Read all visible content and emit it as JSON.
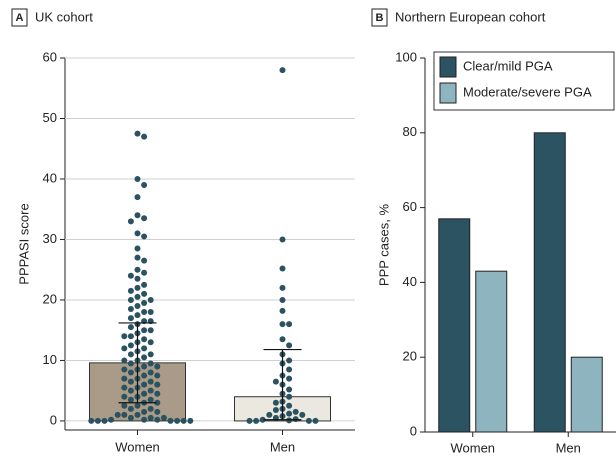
{
  "chart_data": [
    {
      "type": "bar_points",
      "panel": "A",
      "title": "UK cohort",
      "y_label": "PPPASI score",
      "categories": [
        "Women",
        "Men"
      ],
      "values": [
        9.6,
        4.0
      ],
      "colors": [
        "#a99b87",
        "#ebe9df"
      ],
      "error_minus": [
        6.6,
        3.8
      ],
      "error_plus": [
        6.6,
        7.8
      ],
      "points": [
        [
          47.5,
          47,
          40,
          39,
          37,
          34,
          33.5,
          33,
          31,
          30.5,
          28.5,
          27,
          26.5,
          25,
          24.5,
          24,
          23.5,
          22.5,
          22,
          21.5,
          21,
          20.5,
          20,
          20,
          19.5,
          19,
          18.5,
          18,
          18,
          17.5,
          17,
          16.5,
          16.5,
          16,
          15.5,
          15,
          15,
          14.5,
          14,
          14,
          13.5,
          13,
          13,
          12.5,
          12,
          12,
          11.5,
          11,
          11,
          10.5,
          10,
          10,
          9.5,
          9.5,
          9,
          9,
          8.5,
          8.5,
          8,
          8,
          7.5,
          7.5,
          7,
          7,
          6.5,
          6.5,
          6,
          6,
          5.5,
          5.5,
          5,
          5,
          4.5,
          4.5,
          4,
          4,
          3.5,
          3.5,
          3,
          3,
          2.5,
          2.5,
          2,
          2,
          1.5,
          1.5,
          1,
          1,
          1,
          0.5,
          0.5,
          0.5,
          0.2,
          0.2,
          0.2,
          0,
          0,
          0,
          0,
          0,
          0,
          0
        ],
        [
          58,
          30,
          25.2,
          22,
          20,
          18.2,
          16,
          16,
          13.5,
          12.5,
          11,
          10,
          9.5,
          8.5,
          7.5,
          7,
          6.5,
          6,
          5.2,
          4.5,
          4,
          3.2,
          3,
          2.5,
          2,
          1.8,
          1.5,
          1.2,
          1,
          1,
          0.8,
          0.5,
          0.3,
          0.2,
          0.1,
          0,
          0,
          0,
          0
        ]
      ],
      "point_color": "#2b5261",
      "ylim": [
        -1.5,
        60
      ],
      "yticks": [
        0,
        10,
        20,
        30,
        40,
        50,
        60
      ],
      "grid": true
    },
    {
      "type": "grouped_bar",
      "panel": "B",
      "title": "Northern European cohort",
      "y_label": "PPP cases, %",
      "categories": [
        "Women",
        "Men"
      ],
      "series": [
        {
          "name": "Clear/mild PGA",
          "color": "#2c5361",
          "values": [
            57,
            80
          ]
        },
        {
          "name": "Moderate/severe PGA",
          "color": "#8eb4c0",
          "values": [
            43,
            20
          ]
        }
      ],
      "ylim": [
        0,
        100
      ],
      "yticks": [
        0,
        20,
        40,
        60,
        80,
        100
      ],
      "grid": false,
      "legend": "upper right"
    }
  ]
}
